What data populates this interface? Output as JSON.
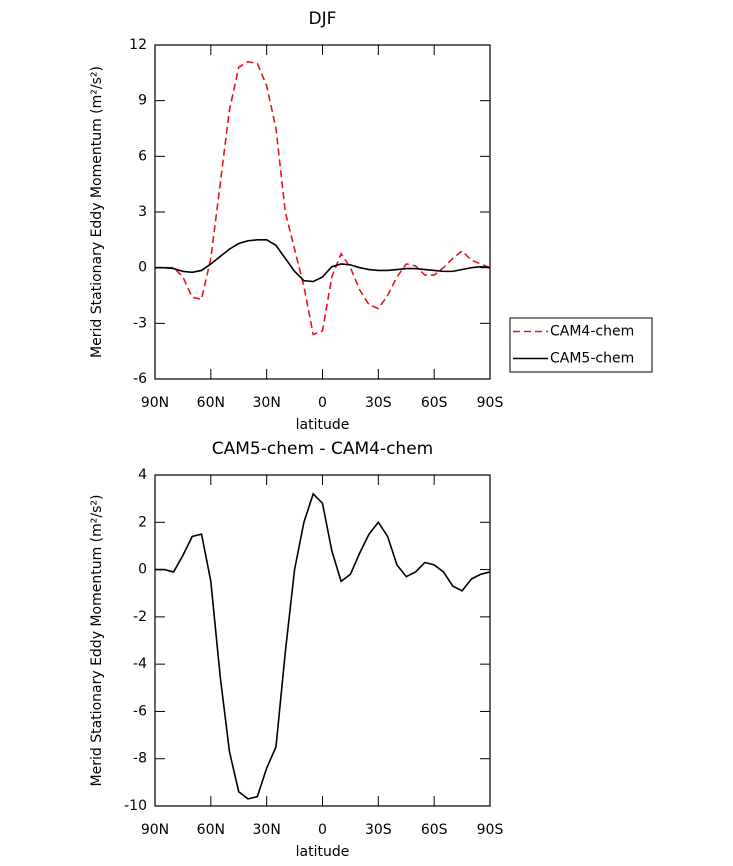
{
  "chart_data": [
    {
      "type": "line",
      "title": "DJF",
      "xlabel": "latitude",
      "ylabel": "Merid Stationary Eddy Momentum (m²/s²)",
      "x": [
        90,
        85,
        80,
        75,
        70,
        65,
        60,
        55,
        50,
        45,
        40,
        35,
        30,
        25,
        20,
        15,
        10,
        5,
        0,
        -5,
        -10,
        -15,
        -20,
        -25,
        -30,
        -35,
        -40,
        -45,
        -50,
        -55,
        -60,
        -65,
        -70,
        -75,
        -80,
        -85,
        -90
      ],
      "series": [
        {
          "name": "CAM4-chem",
          "color": "#e8141e",
          "linestyle": "dashed",
          "values": [
            0,
            0,
            0,
            -0.5,
            -1.6,
            -1.7,
            0.5,
            4.5,
            8.5,
            10.8,
            11.1,
            11,
            9.8,
            7.5,
            3,
            1,
            -1,
            -3.6,
            -3.4,
            -0.5,
            0.75,
            0,
            -1.2,
            -2,
            -2.2,
            -1.5,
            -0.5,
            0.2,
            0.1,
            -0.4,
            -0.4,
            0,
            0.5,
            0.9,
            0.4,
            0.2,
            0
          ]
        },
        {
          "name": "CAM5-chem",
          "color": "#000000",
          "linestyle": "solid",
          "values": [
            0,
            0,
            -0.05,
            -0.2,
            -0.25,
            -0.15,
            0.2,
            0.6,
            1,
            1.3,
            1.45,
            1.5,
            1.5,
            1.2,
            0.5,
            -0.2,
            -0.7,
            -0.75,
            -0.5,
            0.05,
            0.2,
            0.15,
            0,
            -0.1,
            -0.15,
            -0.15,
            -0.1,
            -0.05,
            -0.05,
            -0.1,
            -0.15,
            -0.2,
            -0.2,
            -0.1,
            0,
            0.05,
            0
          ]
        }
      ],
      "xlim": [
        90,
        -90
      ],
      "xticks": [
        {
          "value": 90,
          "label": "90N"
        },
        {
          "value": 60,
          "label": "60N"
        },
        {
          "value": 30,
          "label": "30N"
        },
        0,
        {
          "value": -30,
          "label": "30S"
        },
        {
          "value": -60,
          "label": "60S"
        },
        {
          "value": -90,
          "label": "90S"
        }
      ],
      "ylim": [
        -6,
        12
      ],
      "yticks": [
        -6,
        -3,
        0,
        3,
        6,
        9,
        12
      ],
      "legend": "right"
    },
    {
      "type": "line",
      "title": "CAM5-chem - CAM4-chem",
      "xlabel": "latitude",
      "ylabel": "Merid Stationary Eddy Momentum (m²/s²)",
      "x": [
        90,
        85,
        80,
        75,
        70,
        65,
        60,
        55,
        50,
        45,
        40,
        35,
        30,
        25,
        20,
        15,
        10,
        5,
        0,
        -5,
        -10,
        -15,
        -20,
        -25,
        -30,
        -35,
        -40,
        -45,
        -50,
        -55,
        -60,
        -65,
        -70,
        -75,
        -80,
        -85,
        -90
      ],
      "series": [
        {
          "color": "#000000",
          "linestyle": "solid",
          "values": [
            0,
            0,
            -0.1,
            0.6,
            1.4,
            1.5,
            -0.5,
            -4.5,
            -7.7,
            -9.4,
            -9.7,
            -9.6,
            -8.4,
            -7.5,
            -3.5,
            0,
            2,
            3.2,
            2.8,
            0.8,
            -0.5,
            -0.2,
            0.7,
            1.5,
            2,
            1.4,
            0.2,
            -0.3,
            -0.1,
            0.3,
            0.2,
            -0.1,
            -0.7,
            -0.9,
            -0.4,
            -0.2,
            -0.1
          ]
        }
      ],
      "xlim": [
        90,
        -90
      ],
      "xticks": [
        {
          "value": 90,
          "label": "90N"
        },
        {
          "value": 60,
          "label": "60N"
        },
        {
          "value": 30,
          "label": "30N"
        },
        0,
        {
          "value": -30,
          "label": "30S"
        },
        {
          "value": -60,
          "label": "60S"
        },
        {
          "value": -90,
          "label": "90S"
        }
      ],
      "ylim": [
        -10,
        4
      ],
      "yticks": [
        -10,
        -8,
        -6,
        -4,
        -2,
        0,
        2,
        4
      ]
    }
  ]
}
